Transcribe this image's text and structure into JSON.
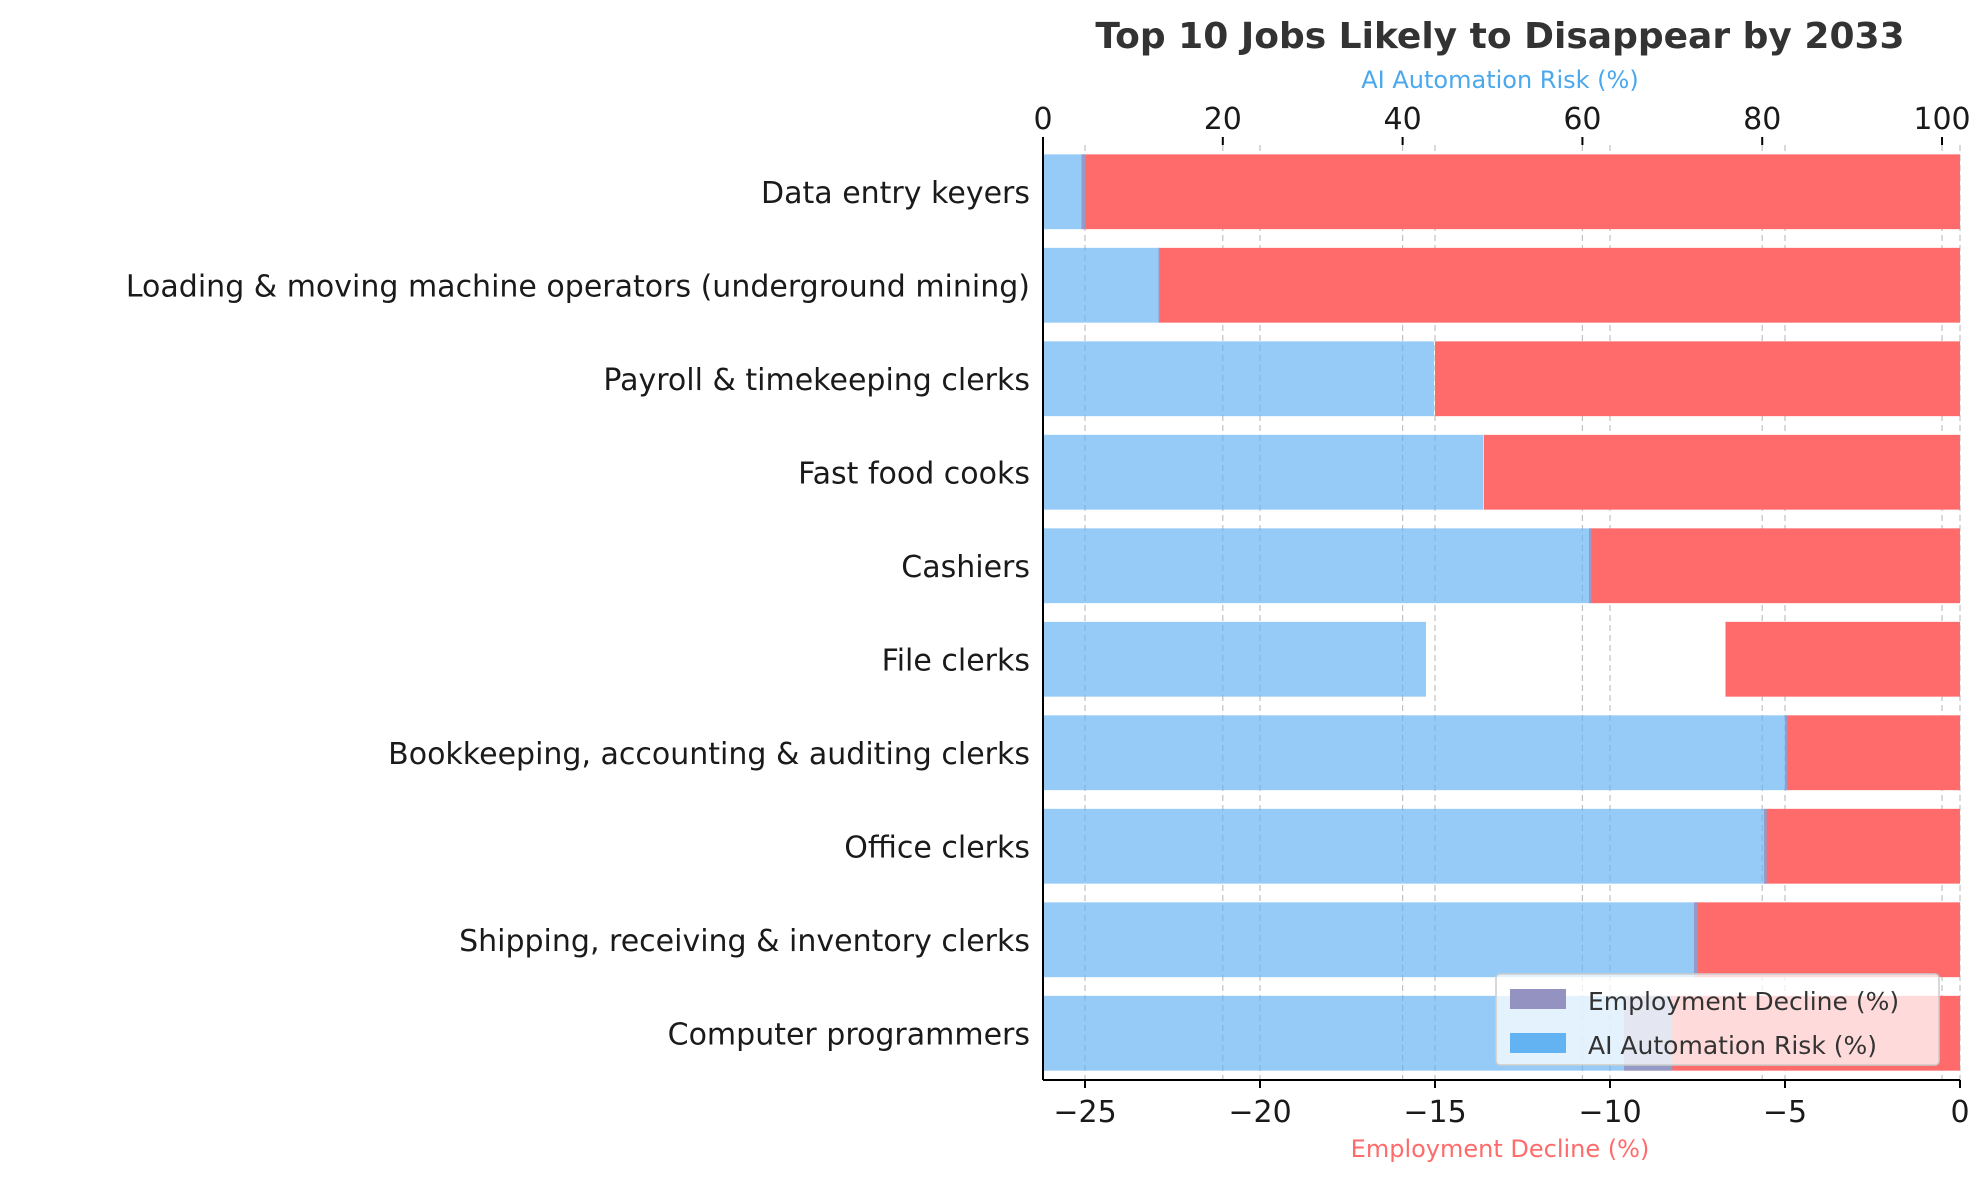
{
  "chart_data": {
    "type": "bar",
    "orientation": "horizontal",
    "title": "Top 10 Jobs Likely to Disappear by 2033",
    "categories": [
      "Data entry keyers",
      "Loading & moving machine operators (underground mining)",
      "Payroll & timekeeping clerks",
      "Fast food cooks",
      "Cashiers",
      "File clerks",
      "Bookkeeping, accounting & auditing clerks",
      "Office clerks",
      "Shipping, receiving & inventory clerks",
      "Computer programmers"
    ],
    "series": [
      {
        "name": "Employment Decline (%)",
        "axis": "bottom",
        "values": [
          -25.1,
          -22.9,
          -15.0,
          -13.6,
          -10.6,
          -6.7,
          -5.0,
          -5.6,
          -7.6,
          -9.6
        ]
      },
      {
        "name": "AI Automation Risk (%)",
        "axis": "top",
        "values": [
          4.7,
          13.0,
          43.5,
          49.0,
          61.0,
          42.6,
          82.8,
          80.5,
          72.8,
          70.0
        ]
      }
    ],
    "bottom_axis": {
      "label": "Employment Decline (%)",
      "range": [
        -26.2,
        0
      ],
      "ticks": [
        -25,
        -20,
        -15,
        -10,
        -5,
        0
      ],
      "tick_labels": [
        "−25",
        "−20",
        "−15",
        "−10",
        "−5",
        "0"
      ]
    },
    "top_axis": {
      "label": "AI Automation Risk (%)",
      "range": [
        0,
        102
      ],
      "ticks": [
        0,
        20,
        40,
        60,
        80,
        100
      ],
      "tick_labels": [
        "0",
        "20",
        "40",
        "60",
        "80",
        "100"
      ]
    },
    "grid": "vertical dashed",
    "legend_position": "bottom-right",
    "colors": {
      "employment_decline": "#ff6b6b",
      "ai_automation_risk": "#87c3f5",
      "overlap": "#9492c1",
      "title": "#333333",
      "top_axis_label": "#4aa8ec",
      "bottom_axis_label": "#ff6b6b"
    }
  }
}
